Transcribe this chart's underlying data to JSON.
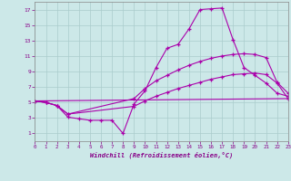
{
  "bg_color": "#cce8e8",
  "line_color": "#aa00aa",
  "xlabel": "Windchill (Refroidissement éolien,°C)",
  "xlim": [
    0,
    23
  ],
  "ylim": [
    0,
    18
  ],
  "xticks": [
    0,
    1,
    2,
    3,
    4,
    5,
    6,
    7,
    8,
    9,
    10,
    11,
    12,
    13,
    14,
    15,
    16,
    17,
    18,
    19,
    20,
    21,
    22,
    23
  ],
  "yticks": [
    1,
    3,
    5,
    7,
    9,
    11,
    13,
    15,
    17
  ],
  "line1_x": [
    0,
    1,
    2,
    3,
    4,
    5,
    6,
    7,
    8,
    9,
    10,
    11,
    12,
    13,
    14,
    15,
    16,
    17,
    18,
    19,
    20,
    21,
    22,
    23
  ],
  "line1_y": [
    5.2,
    5.0,
    4.6,
    3.1,
    2.9,
    2.7,
    2.7,
    2.7,
    1.0,
    4.8,
    6.5,
    9.5,
    12.0,
    12.5,
    14.5,
    17.0,
    17.1,
    17.2,
    13.1,
    9.5,
    8.5,
    7.5,
    6.2,
    5.8
  ],
  "line2_x": [
    0,
    1,
    2,
    3,
    9,
    10,
    11,
    12,
    13,
    14,
    15,
    16,
    17,
    18,
    19,
    20,
    21,
    22,
    23
  ],
  "line2_y": [
    5.2,
    5.0,
    4.6,
    3.5,
    5.5,
    6.8,
    7.8,
    8.5,
    9.2,
    9.8,
    10.3,
    10.7,
    11.0,
    11.2,
    11.3,
    11.2,
    10.8,
    7.6,
    6.2
  ],
  "line3_x": [
    0,
    1,
    2,
    3,
    9,
    10,
    11,
    12,
    13,
    14,
    15,
    16,
    17,
    18,
    19,
    20,
    21,
    22,
    23
  ],
  "line3_y": [
    5.2,
    5.0,
    4.6,
    3.5,
    4.5,
    5.2,
    5.8,
    6.3,
    6.8,
    7.2,
    7.6,
    8.0,
    8.3,
    8.6,
    8.7,
    8.8,
    8.6,
    7.5,
    5.5
  ],
  "line4_x": [
    0,
    23
  ],
  "line4_y": [
    5.2,
    5.5
  ]
}
